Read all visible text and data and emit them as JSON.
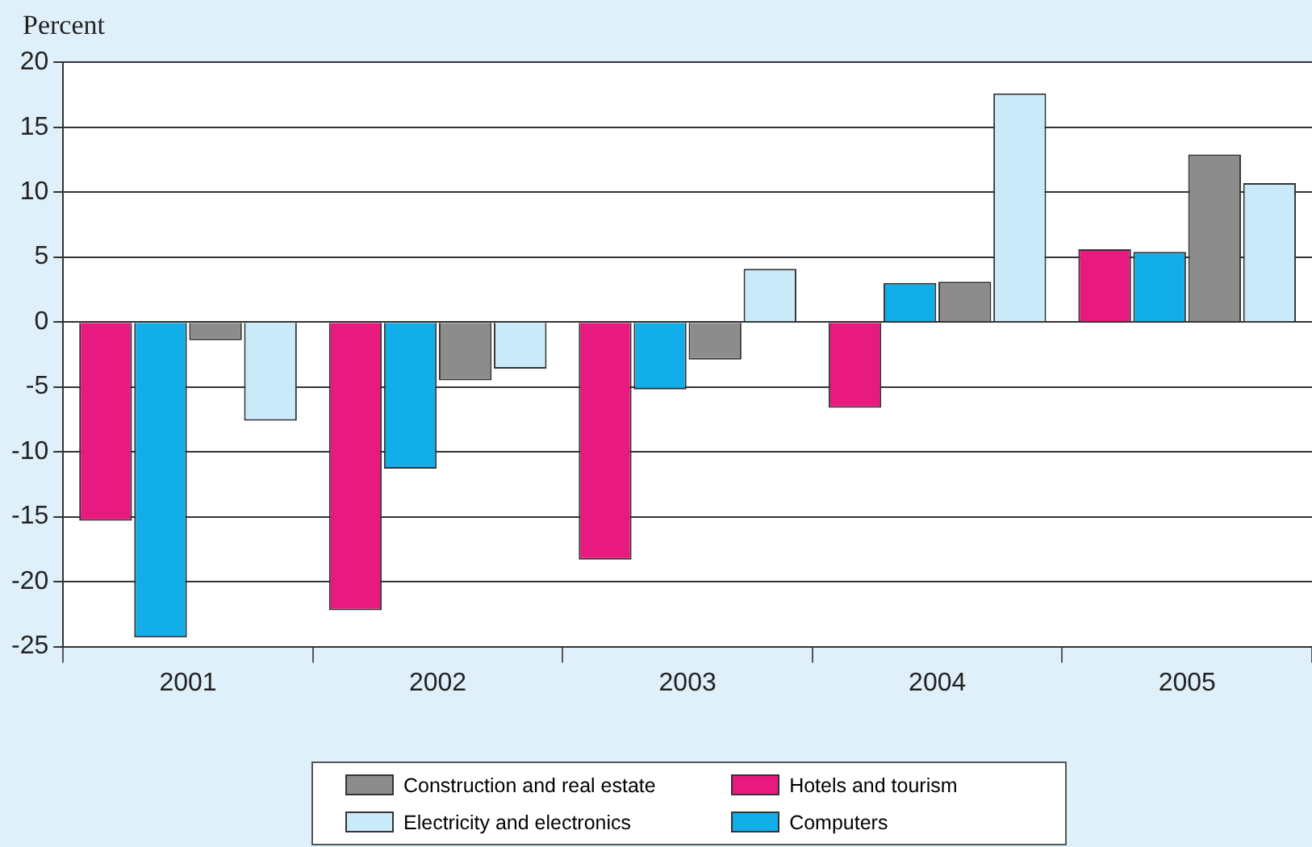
{
  "chart_data": {
    "type": "bar",
    "ylabel": "Percent",
    "categories": [
      "2001",
      "2002",
      "2003",
      "2004",
      "2005"
    ],
    "series": [
      {
        "name": "Hotels and tourism",
        "color": "#e8197f",
        "values": [
          -15.3,
          -22.2,
          -18.3,
          -6.6,
          5.6
        ]
      },
      {
        "name": "Computers",
        "color": "#12aeea",
        "values": [
          -24.3,
          -11.3,
          -5.2,
          3.0,
          5.4
        ]
      },
      {
        "name": "Construction and real estate",
        "color": "#8c8c8c",
        "values": [
          -1.4,
          -4.5,
          -2.9,
          3.1,
          12.9
        ]
      },
      {
        "name": "Electricity and electronics",
        "color": "#c8eaf9",
        "values": [
          -7.6,
          -3.6,
          4.1,
          17.6,
          10.7
        ]
      }
    ],
    "ylim": [
      -25,
      20
    ],
    "yticks": [
      -25,
      -20,
      -15,
      -10,
      -5,
      0,
      5,
      10,
      15,
      20
    ],
    "grid": "y",
    "legend": "bottom"
  }
}
